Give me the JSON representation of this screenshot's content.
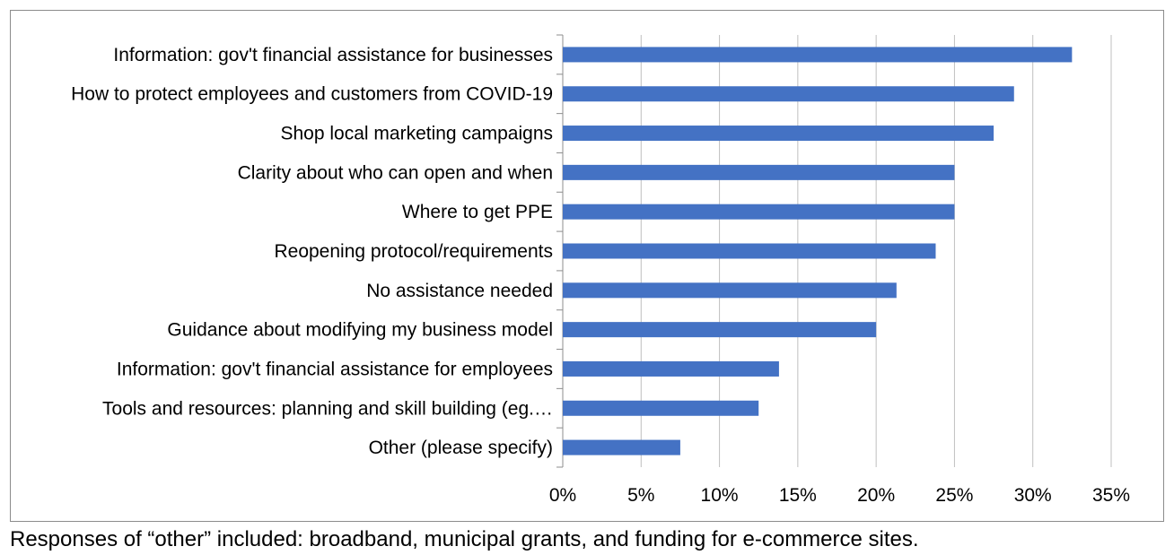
{
  "chart_data": {
    "type": "bar",
    "orientation": "horizontal",
    "categories": [
      "Information: gov't financial assistance for businesses",
      "How to protect employees and customers from COVID-19",
      "Shop local marketing campaigns",
      "Clarity about who can open and when",
      "Where to get PPE",
      "Reopening protocol/requirements",
      "No assistance needed",
      "Guidance about modifying my business model",
      "Information: gov't financial assistance for employees",
      "Tools and resources: planning and skill building (eg.…",
      "Other (please specify)"
    ],
    "values": [
      32.5,
      28.8,
      27.5,
      25.0,
      25.0,
      23.8,
      21.3,
      20.0,
      13.8,
      12.5,
      7.5
    ],
    "value_unit": "%",
    "xlim": [
      0,
      35
    ],
    "xticks": [
      "0%",
      "5%",
      "10%",
      "15%",
      "20%",
      "25%",
      "30%",
      "35%"
    ],
    "title": "",
    "xlabel": "",
    "ylabel": "",
    "grid": "vertical",
    "legend": "none",
    "bar_color": "#4472c4"
  },
  "footnote": "Responses of “other” included: broadband, municipal grants, and funding for e-commerce sites."
}
